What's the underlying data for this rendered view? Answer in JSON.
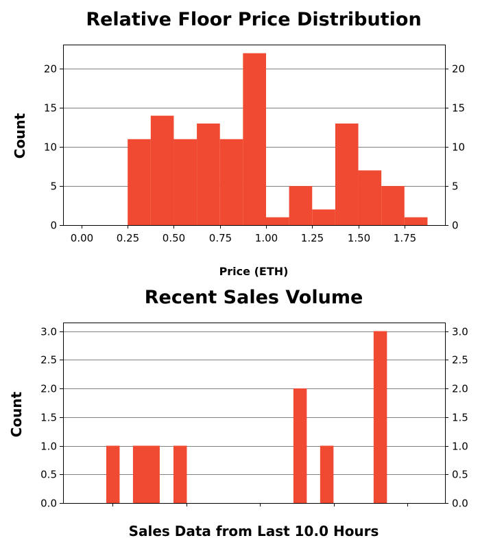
{
  "chart_data": [
    {
      "type": "bar",
      "title": "Relative Floor Price Distribution",
      "xlabel": "Price (ETH)",
      "ylabel": "Count",
      "xlim": [
        -0.1,
        1.97
      ],
      "ylim": [
        0,
        23.1
      ],
      "x_ticks": [
        0.0,
        0.25,
        0.5,
        0.75,
        1.0,
        1.25,
        1.5,
        1.75
      ],
      "x_tick_labels": [
        "0.00",
        "0.25",
        "0.50",
        "0.75",
        "1.00",
        "1.25",
        "1.50",
        "1.75"
      ],
      "y_ticks": [
        0,
        5,
        10,
        15,
        20
      ],
      "y_tick_labels": [
        "0",
        "5",
        "10",
        "15",
        "20"
      ],
      "grid": true,
      "color": "#f04a32",
      "bins": [
        {
          "x0": 0.25,
          "x1": 0.375,
          "value": 11
        },
        {
          "x0": 0.375,
          "x1": 0.5,
          "value": 14
        },
        {
          "x0": 0.5,
          "x1": 0.625,
          "value": 11
        },
        {
          "x0": 0.625,
          "x1": 0.75,
          "value": 13
        },
        {
          "x0": 0.75,
          "x1": 0.875,
          "value": 11
        },
        {
          "x0": 0.875,
          "x1": 1.0,
          "value": 22
        },
        {
          "x0": 1.0,
          "x1": 1.125,
          "value": 1
        },
        {
          "x0": 1.125,
          "x1": 1.25,
          "value": 5
        },
        {
          "x0": 1.25,
          "x1": 1.375,
          "value": 2
        },
        {
          "x0": 1.375,
          "x1": 1.5,
          "value": 13
        },
        {
          "x0": 1.5,
          "x1": 1.625,
          "value": 7
        },
        {
          "x0": 1.625,
          "x1": 1.75,
          "value": 5
        },
        {
          "x0": 1.75,
          "x1": 1.875,
          "value": 1
        }
      ]
    },
    {
      "type": "bar",
      "title": "Recent Sales Volume",
      "xlabel": "Sales Data from Last 10.0 Hours",
      "ylabel": "Count",
      "xlim": [
        0,
        10
      ],
      "ylim": [
        0,
        3.15
      ],
      "x_ticks": [
        1.3,
        3.23,
        5.16,
        7.09,
        9.02
      ],
      "x_tick_labels": [
        "",
        "",
        "",
        "",
        ""
      ],
      "y_ticks": [
        0.0,
        0.5,
        1.0,
        1.5,
        2.0,
        2.5,
        3.0
      ],
      "y_tick_labels": [
        "0.0",
        "0.5",
        "1.0",
        "1.5",
        "2.0",
        "2.5",
        "3.0"
      ],
      "grid": true,
      "color": "#f04a32",
      "bins": [
        {
          "x0": 1.13,
          "x1": 1.48,
          "value": 1
        },
        {
          "x0": 1.83,
          "x1": 2.53,
          "value": 1
        },
        {
          "x0": 2.89,
          "x1": 3.24,
          "value": 1
        },
        {
          "x0": 6.03,
          "x1": 6.38,
          "value": 2
        },
        {
          "x0": 6.73,
          "x1": 7.08,
          "value": 1
        },
        {
          "x0": 8.13,
          "x1": 8.48,
          "value": 3
        }
      ]
    }
  ]
}
